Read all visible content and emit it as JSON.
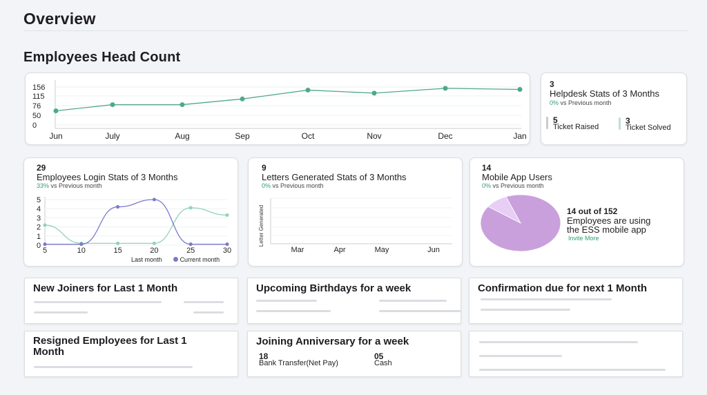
{
  "page": {
    "title": "Overview"
  },
  "head_count": {
    "title": "Employees Head Count",
    "chart_data": {
      "type": "line",
      "categories": [
        "Jun",
        "July",
        "Aug",
        "Sep",
        "Oct",
        "Nov",
        "Dec",
        "Jan"
      ],
      "values": [
        62,
        80,
        80,
        103,
        142,
        128,
        150,
        145
      ],
      "ylim": [
        0,
        156
      ],
      "yticks": [
        "156",
        "115",
        "76",
        "50",
        "0"
      ],
      "color": "#4fa88a"
    }
  },
  "helpdesk": {
    "count": "3",
    "title": "Helpdesk Stats of 3 Months",
    "pct": "0%",
    "sub": " vs Previous month",
    "raised_value": "5",
    "raised_label": "Ticket Raised",
    "solved_value": "3",
    "solved_label": "Ticket Solved",
    "raised_color": "#c8cbd0",
    "solved_color": "#b9e3cf"
  },
  "login_stats": {
    "count": "29",
    "title": "Employees Login Stats of 3 Months",
    "pct": "33%",
    "sub": " vs Previous month",
    "legend_last": "Last month",
    "legend_current": "Current month",
    "chart_data": {
      "type": "line",
      "x_ticks": [
        "5",
        "10",
        "15",
        "20",
        "25",
        "30"
      ],
      "y_ticks": [
        "5",
        "4",
        "3",
        "2",
        "1",
        "0"
      ],
      "xlim": [
        5,
        30
      ],
      "ylim": [
        0,
        5
      ],
      "series": [
        {
          "name": "Last month",
          "color": "#8fd3b8",
          "x": [
            5,
            10,
            15,
            20,
            25,
            30
          ],
          "y": [
            2.2,
            0.2,
            0.2,
            0.2,
            4.1,
            3.3
          ]
        },
        {
          "name": "Current month",
          "color": "#7b78c9",
          "x": [
            5,
            10,
            15,
            20,
            25,
            30
          ],
          "y": [
            0.1,
            0.1,
            4.2,
            5.0,
            0.1,
            0.1
          ]
        }
      ]
    }
  },
  "letters": {
    "count": "9",
    "title": "Letters Generated Stats of 3 Months",
    "pct": "0%",
    "sub": " vs Previous month",
    "ylabel": "Letter Generated",
    "x_ticks": [
      "Mar",
      "Apr",
      "May",
      "Jun"
    ]
  },
  "mobile": {
    "count": "14",
    "title": "Mobile App Users",
    "pct": "0%",
    "sub": " vs Previous month",
    "ratio": "14 out of 152",
    "desc_line1": "Employees are using",
    "desc_line2": "the ESS mobile app",
    "invite": "Invite More",
    "chart_data": {
      "type": "pie",
      "values": [
        14,
        138
      ],
      "colors": [
        "#e6cef4",
        "#c9a0dc"
      ]
    }
  },
  "lists": {
    "new_joiners": "New Joiners for Last 1 Month",
    "birthdays": "Upcoming Birthdays for a week",
    "confirmation": "Confirmation due for next 1 Month",
    "resigned": "Resigned Employees for Last 1 Month",
    "anniversary": "Joining Anniversary for a week",
    "bank_value": "18",
    "bank_label": "Bank Transfer(Net Pay)",
    "cash_value": "05",
    "cash_label": "Cash"
  }
}
